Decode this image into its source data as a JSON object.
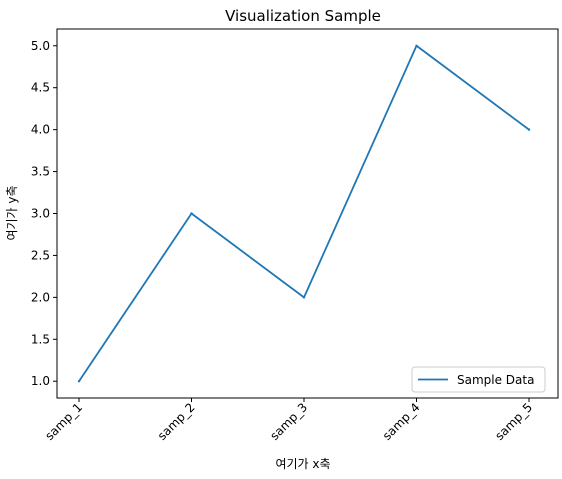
{
  "chart_data": {
    "type": "line",
    "title": "Visualization Sample",
    "xlabel": "여기가 x축",
    "ylabel": "여기가 y축",
    "categories": [
      "samp_1",
      "samp_2",
      "samp_3",
      "samp_4",
      "samp_5"
    ],
    "series": [
      {
        "name": "Sample Data",
        "values": [
          1.0,
          3.0,
          2.0,
          5.0,
          4.0
        ],
        "color": "#1f77b4"
      }
    ],
    "ylim": [
      0.8,
      5.2
    ],
    "yticks": [
      1.0,
      1.5,
      2.0,
      2.5,
      3.0,
      3.5,
      4.0,
      4.5,
      5.0
    ],
    "ytick_labels": [
      "1.0",
      "1.5",
      "2.0",
      "2.5",
      "3.0",
      "3.5",
      "4.0",
      "4.5",
      "5.0"
    ],
    "xtick_rotation": "45°",
    "grid": false,
    "legend": {
      "placement": "lower right"
    }
  }
}
